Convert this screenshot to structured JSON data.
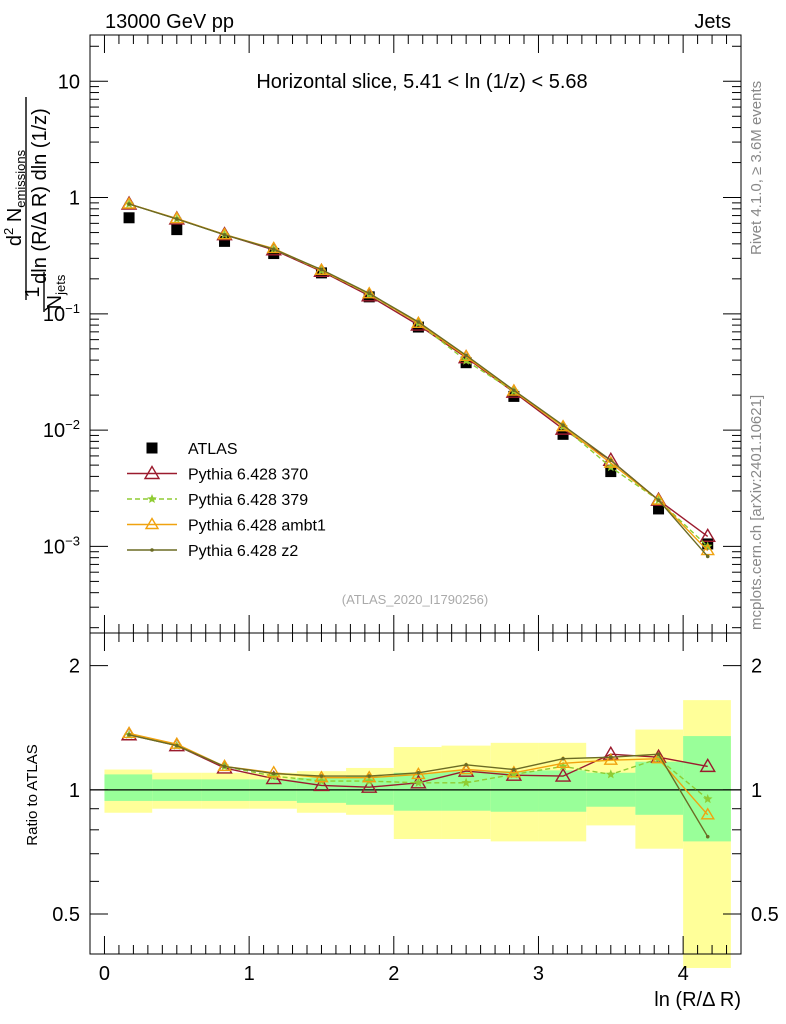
{
  "header": {
    "left": "13000 GeV pp",
    "right": "Jets"
  },
  "side_labels": {
    "top": "Rivet 4.1.0, ≥ 3.6M events",
    "bottom": "mcplots.cern.ch [arXiv:2401.10621]"
  },
  "colors": {
    "atlas": "#000000",
    "p370": "#9b1b2e",
    "p379": "#8fcc33",
    "ambt1": "#f0a20f",
    "z2": "#6b6b24",
    "band_inner": "#99ff99",
    "band_outer": "#ffff99"
  },
  "chart_data": [
    {
      "type": "line",
      "panel": "main",
      "title": "Horizontal slice, 5.41 < ln (1/z) < 5.68",
      "ylabel": "1/N_jets dN_emissions/dln(R/ΔR) dln(1/z)",
      "ylabel_parts": {
        "frac1_num": "1",
        "frac1_den": "N",
        "frac1_den_sub": "jets",
        "frac2_num": "d",
        "frac2_num_sup": "2",
        "frac2_num_rest": " N",
        "frac2_num_sub": "emissions",
        "frac2_den": "dln (R/Δ R) dln (1/z)"
      },
      "yscale": "log",
      "xlim": [
        -0.1,
        4.4
      ],
      "ylim": [
        0.00018,
        25
      ],
      "yticks": [
        {
          "v": 0.001,
          "base": "10",
          "exp": "−3"
        },
        {
          "v": 0.01,
          "base": "10",
          "exp": "−2"
        },
        {
          "v": 0.1,
          "base": "10",
          "exp": "−1"
        },
        {
          "v": 1,
          "base": "1",
          "exp": ""
        },
        {
          "v": 10,
          "base": "10",
          "exp": ""
        }
      ],
      "x": [
        0.17,
        0.5,
        0.83,
        1.17,
        1.5,
        1.83,
        2.17,
        2.5,
        2.83,
        3.17,
        3.5,
        3.83,
        4.17
      ],
      "watermark": "(ATLAS_2020_I1790256)",
      "series": [
        {
          "name": "ATLAS",
          "key": "atlas",
          "values": [
            0.67,
            0.53,
            0.42,
            0.33,
            0.225,
            0.14,
            0.077,
            0.038,
            0.0195,
            0.0092,
            0.0044,
            0.0021,
            0.00105
          ]
        },
        {
          "name": "Pythia 6.428 370",
          "key": "p370",
          "values": [
            0.88,
            0.655,
            0.48,
            0.355,
            0.232,
            0.143,
            0.08,
            0.042,
            0.0212,
            0.0102,
            0.0055,
            0.0025,
            0.00122
          ]
        },
        {
          "name": "Pythia 6.428 379",
          "key": "p379",
          "values": [
            0.88,
            0.655,
            0.48,
            0.36,
            0.236,
            0.147,
            0.083,
            0.0395,
            0.0216,
            0.0107,
            0.0048,
            0.0025,
            0.001
          ]
        },
        {
          "name": "Pythia 6.428 ambt1",
          "key": "ambt1",
          "values": [
            0.88,
            0.66,
            0.48,
            0.365,
            0.237,
            0.149,
            0.083,
            0.043,
            0.0217,
            0.0107,
            0.0052,
            0.0025,
            0.00092
          ]
        },
        {
          "name": "Pythia 6.428 z2",
          "key": "z2",
          "values": [
            0.88,
            0.655,
            0.478,
            0.36,
            0.24,
            0.15,
            0.085,
            0.044,
            0.022,
            0.011,
            0.0055,
            0.0025,
            0.00082
          ]
        }
      ]
    },
    {
      "type": "line",
      "panel": "ratio",
      "ylabel": "Ratio to ATLAS",
      "xlabel": "ln (R/Δ R)",
      "yscale": "log",
      "xlim": [
        -0.1,
        4.4
      ],
      "ylim": [
        0.4,
        2.4
      ],
      "yticks": [
        0.5,
        1,
        2
      ],
      "xticks": [
        0,
        1,
        2,
        3,
        4
      ],
      "x": [
        0.17,
        0.5,
        0.83,
        1.17,
        1.5,
        1.83,
        2.17,
        2.5,
        2.83,
        3.17,
        3.5,
        3.83,
        4.17
      ],
      "band_edges": [
        0.0,
        0.33,
        0.67,
        1.0,
        1.33,
        1.67,
        2.0,
        2.33,
        2.67,
        3.0,
        3.33,
        3.67,
        4.0,
        4.33
      ],
      "band_inner": [
        [
          0.94,
          1.09
        ],
        [
          0.94,
          1.06
        ],
        [
          0.94,
          1.06
        ],
        [
          0.94,
          1.06
        ],
        [
          0.93,
          1.07
        ],
        [
          0.92,
          1.08
        ],
        [
          0.89,
          1.1
        ],
        [
          0.89,
          1.11
        ],
        [
          0.885,
          1.11
        ],
        [
          0.885,
          1.115
        ],
        [
          0.91,
          1.1
        ],
        [
          0.87,
          1.17
        ],
        [
          0.75,
          1.35
        ]
      ],
      "band_outer": [
        [
          0.88,
          1.12
        ],
        [
          0.9,
          1.1
        ],
        [
          0.9,
          1.1
        ],
        [
          0.9,
          1.1
        ],
        [
          0.88,
          1.11
        ],
        [
          0.87,
          1.13
        ],
        [
          0.76,
          1.27
        ],
        [
          0.76,
          1.28
        ],
        [
          0.75,
          1.3
        ],
        [
          0.75,
          1.3
        ],
        [
          0.82,
          1.2
        ],
        [
          0.72,
          1.4
        ],
        [
          0.37,
          1.65
        ]
      ],
      "series": [
        {
          "name": "Pythia 6.428 370",
          "key": "p370",
          "values": [
            1.36,
            1.28,
            1.13,
            1.065,
            1.025,
            1.015,
            1.04,
            1.11,
            1.085,
            1.08,
            1.22,
            1.2,
            1.14
          ]
        },
        {
          "name": "Pythia 6.428 379",
          "key": "p379",
          "values": [
            1.36,
            1.28,
            1.14,
            1.08,
            1.05,
            1.05,
            1.04,
            1.04,
            1.09,
            1.14,
            1.09,
            1.19,
            0.95
          ]
        },
        {
          "name": "Pythia 6.428 ambt1",
          "key": "ambt1",
          "values": [
            1.37,
            1.29,
            1.14,
            1.1,
            1.07,
            1.07,
            1.09,
            1.12,
            1.1,
            1.16,
            1.18,
            1.19,
            0.87
          ]
        },
        {
          "name": "Pythia 6.428 z2",
          "key": "z2",
          "values": [
            1.36,
            1.28,
            1.14,
            1.095,
            1.08,
            1.08,
            1.1,
            1.15,
            1.12,
            1.19,
            1.2,
            1.22,
            0.77
          ]
        }
      ]
    }
  ]
}
